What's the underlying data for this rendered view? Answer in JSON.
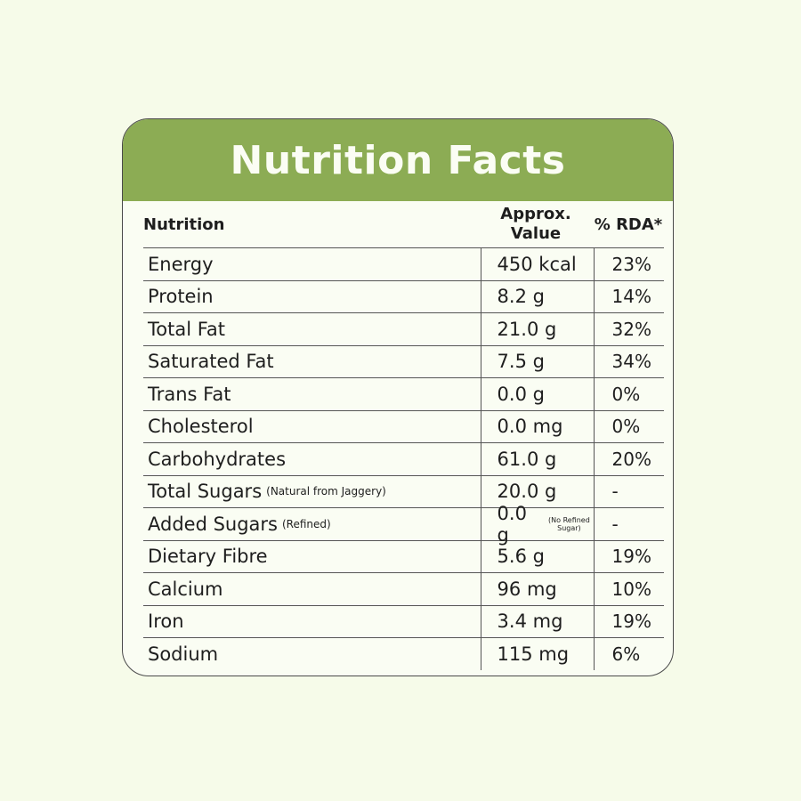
{
  "header": {
    "title": "Nutrition Facts"
  },
  "table": {
    "columns": [
      "Nutrition",
      "Approx. Value",
      "% RDA*"
    ],
    "rows": [
      {
        "name": "Energy",
        "value": "450 kcal",
        "rda": "23%"
      },
      {
        "name": "Protein",
        "value": "8.2 g",
        "rda": "14%"
      },
      {
        "name": "Total Fat",
        "value": "21.0 g",
        "rda": "32%"
      },
      {
        "name": "Saturated Fat",
        "value": "7.5 g",
        "rda": "34%"
      },
      {
        "name": "Trans Fat",
        "value": "0.0 g",
        "rda": "0%"
      },
      {
        "name": "Cholesterol",
        "value": "0.0 mg",
        "rda": "0%"
      },
      {
        "name": "Carbohydrates",
        "value": "61.0 g",
        "rda": "20%"
      },
      {
        "name": "Total Sugars",
        "note": "(Natural from Jaggery)",
        "value": "20.0 g",
        "rda": "-"
      },
      {
        "name": "Added Sugars",
        "note": "(Refined)",
        "value": "0.0 g",
        "value_note": "(No Refined Sugar)",
        "rda": "-"
      },
      {
        "name": "Dietary Fibre",
        "value": "5.6 g",
        "rda": "19%"
      },
      {
        "name": "Calcium",
        "value": "96 mg",
        "rda": "10%"
      },
      {
        "name": "Iron",
        "value": "3.4 mg",
        "rda": "19%"
      },
      {
        "name": "Sodium",
        "value": "115 mg",
        "rda": "6%"
      }
    ]
  }
}
